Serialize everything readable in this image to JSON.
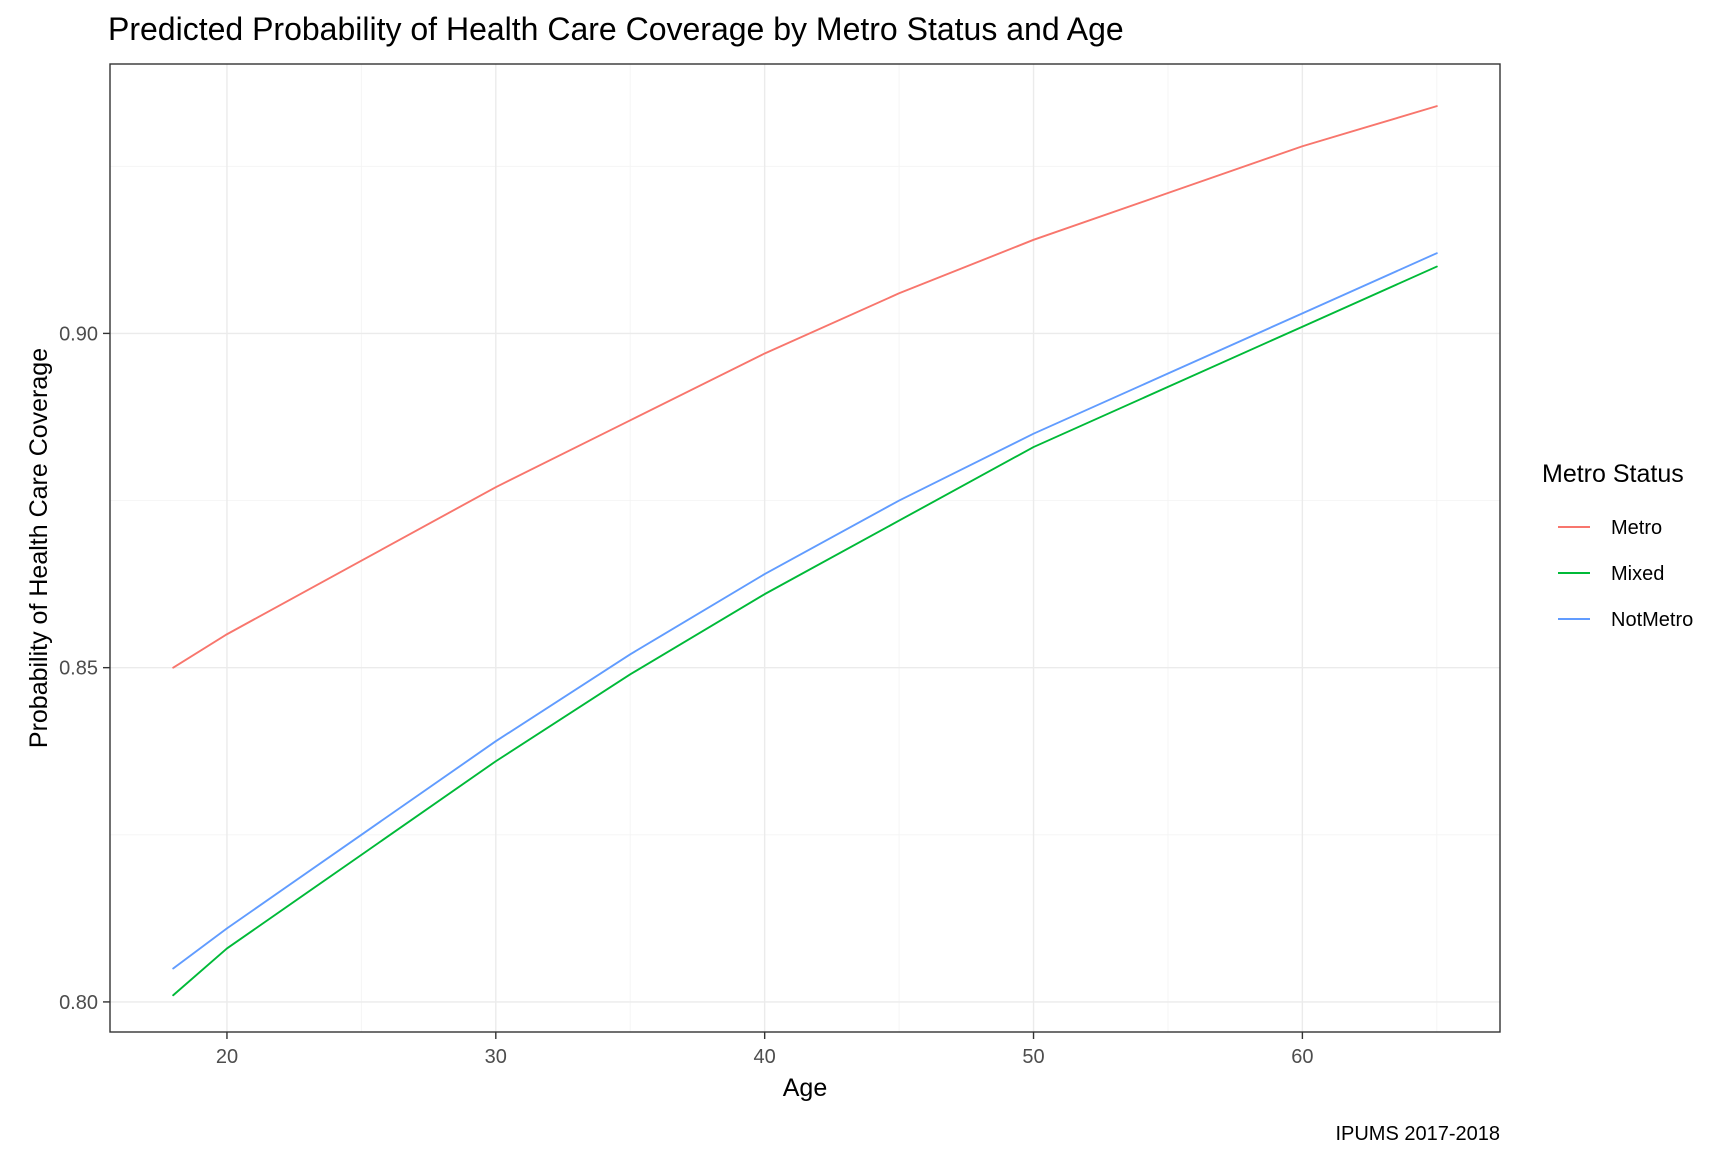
{
  "chart_data": {
    "type": "line",
    "title": "Predicted Probability of Health Care Coverage by Metro Status and Age",
    "xlabel": "Age",
    "ylabel": "Probability of Health Care Coverage",
    "caption": "IPUMS 2017-2018",
    "xlim": [
      15.65,
      67.35
    ],
    "ylim": [
      0.7955,
      0.9403
    ],
    "x_ticks": [
      20,
      30,
      40,
      50,
      60
    ],
    "y_ticks": [
      0.8,
      0.85,
      0.9
    ],
    "x_tick_labels": [
      "20",
      "30",
      "40",
      "50",
      "60"
    ],
    "y_tick_labels": [
      "0.80",
      "0.85",
      "0.90"
    ],
    "grid": true,
    "legend": {
      "title": "Metro Status",
      "position": "right"
    },
    "series": [
      {
        "name": "Metro",
        "color": "#F8766D",
        "x": [
          18,
          20,
          25,
          30,
          35,
          40,
          45,
          50,
          55,
          60,
          65
        ],
        "y": [
          0.85,
          0.855,
          0.866,
          0.877,
          0.887,
          0.897,
          0.906,
          0.914,
          0.921,
          0.928,
          0.934
        ]
      },
      {
        "name": "Mixed",
        "color": "#00BA38",
        "x": [
          18,
          20,
          25,
          30,
          35,
          40,
          45,
          50,
          55,
          60,
          65
        ],
        "y": [
          0.801,
          0.808,
          0.822,
          0.836,
          0.849,
          0.861,
          0.872,
          0.883,
          0.892,
          0.901,
          0.91
        ]
      },
      {
        "name": "NotMetro",
        "color": "#619CFF",
        "x": [
          18,
          20,
          25,
          30,
          35,
          40,
          45,
          50,
          55,
          60,
          65
        ],
        "y": [
          0.805,
          0.811,
          0.825,
          0.839,
          0.852,
          0.864,
          0.875,
          0.885,
          0.894,
          0.903,
          0.912
        ]
      }
    ]
  }
}
